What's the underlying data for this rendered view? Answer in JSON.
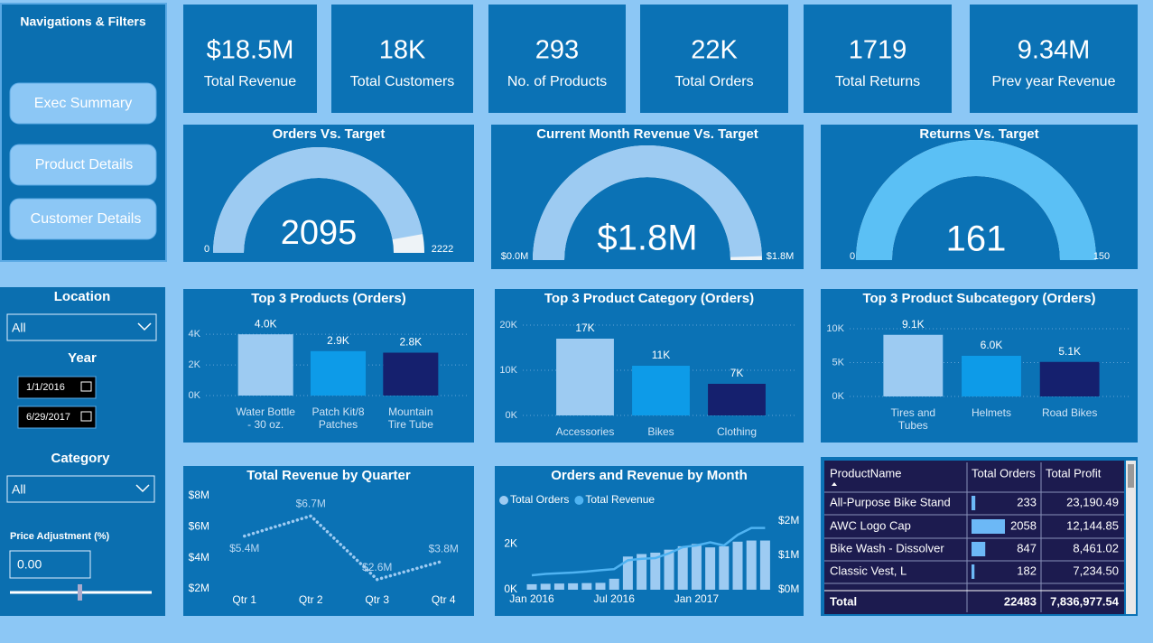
{
  "sidebar": {
    "title": "Navigations & Filters",
    "buttons": [
      "Exec Summary",
      "Product Details",
      "Customer Details"
    ]
  },
  "filters": {
    "location_label": "Location",
    "location_value": "All",
    "year_label": "Year",
    "start_date": "1/1/2016",
    "end_date": "6/29/2017",
    "category_label": "Category",
    "category_value": "All",
    "price_label": "Price Adjustment (%)",
    "price_value": "0.00"
  },
  "kpis": [
    {
      "value": "$18.5M",
      "label": "Total Revenue"
    },
    {
      "value": "18K",
      "label": "Total Customers"
    },
    {
      "value": "293",
      "label": "No. of Products"
    },
    {
      "value": "22K",
      "label": "Total Orders"
    },
    {
      "value": "1719",
      "label": "Total Returns"
    },
    {
      "value": "9.34M",
      "label": "Prev year Revenue"
    }
  ],
  "chart_data": [
    {
      "type": "gauge",
      "title": "Orders Vs. Target",
      "value": 2095,
      "ylim": [
        0,
        2222
      ],
      "ticks": [
        0,
        2222
      ],
      "color": "#9dcbf2"
    },
    {
      "type": "gauge",
      "title": "Current Month Revenue Vs. Target",
      "value": 1780000,
      "value_label": "$1.8M",
      "ylim": [
        0,
        1800000
      ],
      "ticks": [
        {
          "value": 0,
          "label": "$0.0M"
        },
        {
          "value": 1800000,
          "label": "$1.8M"
        }
      ],
      "color": "#9dcbf2"
    },
    {
      "type": "gauge",
      "title": "Returns Vs. Target",
      "value": 161,
      "ylim": [
        0,
        150
      ],
      "ticks": [
        0,
        150
      ],
      "color": "#5bc0f5"
    },
    {
      "type": "bar",
      "title": "Top 3 Products (Orders)",
      "categories": [
        "Water Bottle - 30 oz.",
        "Patch Kit/8 Patches",
        "Mountain Tire Tube"
      ],
      "values": [
        4000,
        2900,
        2800
      ],
      "value_labels": [
        "4.0K",
        "2.9K",
        "2.8K"
      ],
      "colors": [
        "#9dcbf2",
        "#0d9be8",
        "#15206e"
      ],
      "ylim": [
        0,
        4600
      ],
      "yticks": [
        {
          "value": 0,
          "label": "0K"
        },
        {
          "value": 2000,
          "label": "2K"
        },
        {
          "value": 4000,
          "label": "4K"
        }
      ],
      "grid": true
    },
    {
      "type": "bar",
      "title": "Top 3 Product Category (Orders)",
      "categories": [
        "Accessories",
        "Bikes",
        "Clothing"
      ],
      "values": [
        17000,
        11000,
        7000
      ],
      "value_labels": [
        "17K",
        "11K",
        "7K"
      ],
      "colors": [
        "#9dcbf2",
        "#0d9be8",
        "#15206e"
      ],
      "ylim": [
        0,
        22000
      ],
      "yticks": [
        {
          "value": 0,
          "label": "0K"
        },
        {
          "value": 10000,
          "label": "10K"
        },
        {
          "value": 20000,
          "label": "20K"
        }
      ],
      "grid": true
    },
    {
      "type": "bar",
      "title": "Top 3 Product Subcategory (Orders)",
      "categories": [
        "Tires and Tubes",
        "Helmets",
        "Road Bikes"
      ],
      "values": [
        9100,
        6000,
        5100
      ],
      "value_labels": [
        "9.1K",
        "6.0K",
        "5.1K"
      ],
      "colors": [
        "#9dcbf2",
        "#0d9be8",
        "#15206e"
      ],
      "ylim": [
        0,
        11000
      ],
      "yticks": [
        {
          "value": 0,
          "label": "0K"
        },
        {
          "value": 5000,
          "label": "5K"
        },
        {
          "value": 10000,
          "label": "10K"
        }
      ],
      "grid": true
    },
    {
      "type": "line",
      "title": "Total Revenue by Quarter",
      "categories": [
        "Qtr 1",
        "Qtr 2",
        "Qtr 3",
        "Qtr 4"
      ],
      "values": [
        5400000,
        6700000,
        2600000,
        3800000
      ],
      "value_labels": [
        "$5.4M",
        "$6.7M",
        "$2.6M",
        "$3.8M"
      ],
      "color": "#9dcbf2",
      "ylim": [
        2000000,
        8000000
      ],
      "yticks": [
        {
          "value": 2000000,
          "label": "$2M"
        },
        {
          "value": 4000000,
          "label": "$4M"
        },
        {
          "value": 6000000,
          "label": "$6M"
        },
        {
          "value": 8000000,
          "label": "$8M"
        }
      ]
    },
    {
      "type": "combo",
      "title": "Orders and Revenue by Month",
      "categories": [
        "Jan 2016",
        null,
        null,
        null,
        null,
        null,
        "Jul 2016",
        null,
        null,
        null,
        null,
        null,
        "Jan 2017",
        null,
        null,
        null,
        null,
        null
      ],
      "series": [
        {
          "name": "Total Orders",
          "type": "bar",
          "color": "#9dcbf2",
          "values": [
            240,
            260,
            270,
            280,
            290,
            300,
            480,
            1450,
            1560,
            1620,
            1750,
            1900,
            2000,
            1850,
            1900,
            2100,
            2150,
            2150
          ]
        },
        {
          "name": "Total Revenue",
          "type": "line",
          "axis": "y2",
          "color": "#4fb3f2",
          "values": [
            420000,
            460000,
            480000,
            500000,
            530000,
            570000,
            600000,
            860000,
            900000,
            920000,
            1060000,
            1240000,
            1290000,
            1380000,
            1290000,
            1600000,
            1800000,
            1800000
          ]
        }
      ],
      "ylim": [
        0,
        3000
      ],
      "yticks": [
        {
          "value": 0,
          "label": "0K"
        },
        {
          "value": 2000,
          "label": "2K"
        }
      ],
      "y2lim": [
        0,
        2000000
      ],
      "y2ticks": [
        {
          "value": 0,
          "label": "$0M"
        },
        {
          "value": 1000000,
          "label": "$1M"
        },
        {
          "value": 2000000,
          "label": "$2M"
        }
      ]
    }
  ],
  "table": {
    "columns": [
      "ProductName",
      "Total Orders",
      "Total Profit"
    ],
    "rows": [
      [
        "All-Purpose Bike Stand",
        233,
        "23,190.49"
      ],
      [
        "AWC Logo Cap",
        2058,
        "12,144.85"
      ],
      [
        "Bike Wash - Dissolver",
        847,
        "8,461.02"
      ],
      [
        "Classic Vest, L",
        182,
        "7,234.50"
      ]
    ],
    "total": [
      "Total",
      22483,
      "7,836,977.54"
    ]
  }
}
